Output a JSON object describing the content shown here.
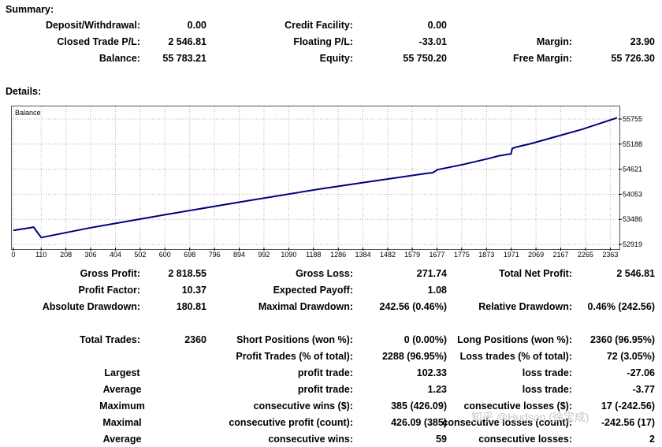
{
  "summary": {
    "title": "Summary:",
    "rows": [
      [
        {
          "label": "Deposit/Withdrawal:",
          "value": "0.00"
        },
        {
          "label": "Credit Facility:",
          "value": "0.00"
        },
        {
          "label": "",
          "value": ""
        }
      ],
      [
        {
          "label": "Closed Trade P/L:",
          "value": "2 546.81"
        },
        {
          "label": "Floating P/L:",
          "value": "-33.01"
        },
        {
          "label": "Margin:",
          "value": "23.90"
        }
      ],
      [
        {
          "label": "Balance:",
          "value": "55 783.21"
        },
        {
          "label": "Equity:",
          "value": "55 750.20"
        },
        {
          "label": "Free Margin:",
          "value": "55 726.30"
        }
      ]
    ]
  },
  "details": {
    "title": "Details:",
    "rows": [
      [
        {
          "label": "Gross Profit:",
          "value": "2 818.55"
        },
        {
          "label": "Gross Loss:",
          "value": "271.74"
        },
        {
          "label": "Total Net Profit:",
          "value": "2 546.81"
        }
      ],
      [
        {
          "label": "Profit Factor:",
          "value": "10.37"
        },
        {
          "label": "Expected Payoff:",
          "value": "1.08"
        },
        {
          "label": "",
          "value": ""
        }
      ],
      [
        {
          "label": "Absolute Drawdown:",
          "value": "180.81"
        },
        {
          "label": "Maximal Drawdown:",
          "value": "242.56 (0.46%)"
        },
        {
          "label": "Relative Drawdown:",
          "value": "0.46% (242.56)"
        }
      ]
    ],
    "trade_rows": [
      [
        {
          "label": "Total Trades:",
          "value": "2360"
        },
        {
          "label": "Short Positions (won %):",
          "value": "0 (0.00%)"
        },
        {
          "label": "Long Positions (won %):",
          "value": "2360 (96.95%)"
        }
      ],
      [
        {
          "label": "",
          "value": ""
        },
        {
          "label": "Profit Trades (% of total):",
          "value": "2288 (96.95%)"
        },
        {
          "label": "Loss trades (% of total):",
          "value": "72 (3.05%)"
        }
      ],
      [
        {
          "label": "Largest",
          "value": ""
        },
        {
          "label": "profit trade:",
          "value": "102.33"
        },
        {
          "label": "loss trade:",
          "value": "-27.06"
        }
      ],
      [
        {
          "label": "Average",
          "value": ""
        },
        {
          "label": "profit trade:",
          "value": "1.23"
        },
        {
          "label": "loss trade:",
          "value": "-3.77"
        }
      ],
      [
        {
          "label": "Maximum",
          "value": ""
        },
        {
          "label": "consecutive wins ($):",
          "value": "385 (426.09)"
        },
        {
          "label": "consecutive losses ($):",
          "value": "17 (-242.56)"
        }
      ],
      [
        {
          "label": "Maximal",
          "value": ""
        },
        {
          "label": "consecutive profit (count):",
          "value": "426.09 (385)"
        },
        {
          "label": "consecutive losses (count):",
          "value": "-242.56 (17)"
        }
      ],
      [
        {
          "label": "Average",
          "value": ""
        },
        {
          "label": "consecutive wins:",
          "value": "59"
        },
        {
          "label": "consecutive losses:",
          "value": "2"
        }
      ]
    ]
  },
  "watermark": "知乎 @Hudson (徐宝成)",
  "chart_data": {
    "type": "line",
    "legend": "Balance",
    "line_color": "#000080",
    "grid": true,
    "grid_style": "dotted",
    "y_ticks": [
      55755,
      55188,
      54621,
      54053,
      53486,
      52919
    ],
    "x_ticks": [
      0,
      110,
      208,
      306,
      404,
      502,
      600,
      698,
      796,
      894,
      992,
      1090,
      1188,
      1286,
      1384,
      1482,
      1579,
      1677,
      1775,
      1873,
      1971,
      2069,
      2167,
      2265,
      2363
    ],
    "xlim": [
      0,
      2390
    ],
    "ylim": [
      52919,
      55755
    ],
    "series": [
      {
        "name": "Balance",
        "x": [
          0,
          60,
          80,
          110,
          300,
          600,
          900,
          1200,
          1400,
          1580,
          1640,
          1660,
          1680,
          1780,
          1880,
          1920,
          1960,
          1970,
          1975,
          1990,
          2050,
          2150,
          2250,
          2390
        ],
        "y": [
          53236,
          53290,
          53310,
          53075,
          53290,
          53590,
          53880,
          54160,
          54330,
          54480,
          54530,
          54540,
          54610,
          54725,
          54860,
          54920,
          54960,
          54965,
          55090,
          55120,
          55200,
          55360,
          55520,
          55783
        ]
      }
    ]
  }
}
